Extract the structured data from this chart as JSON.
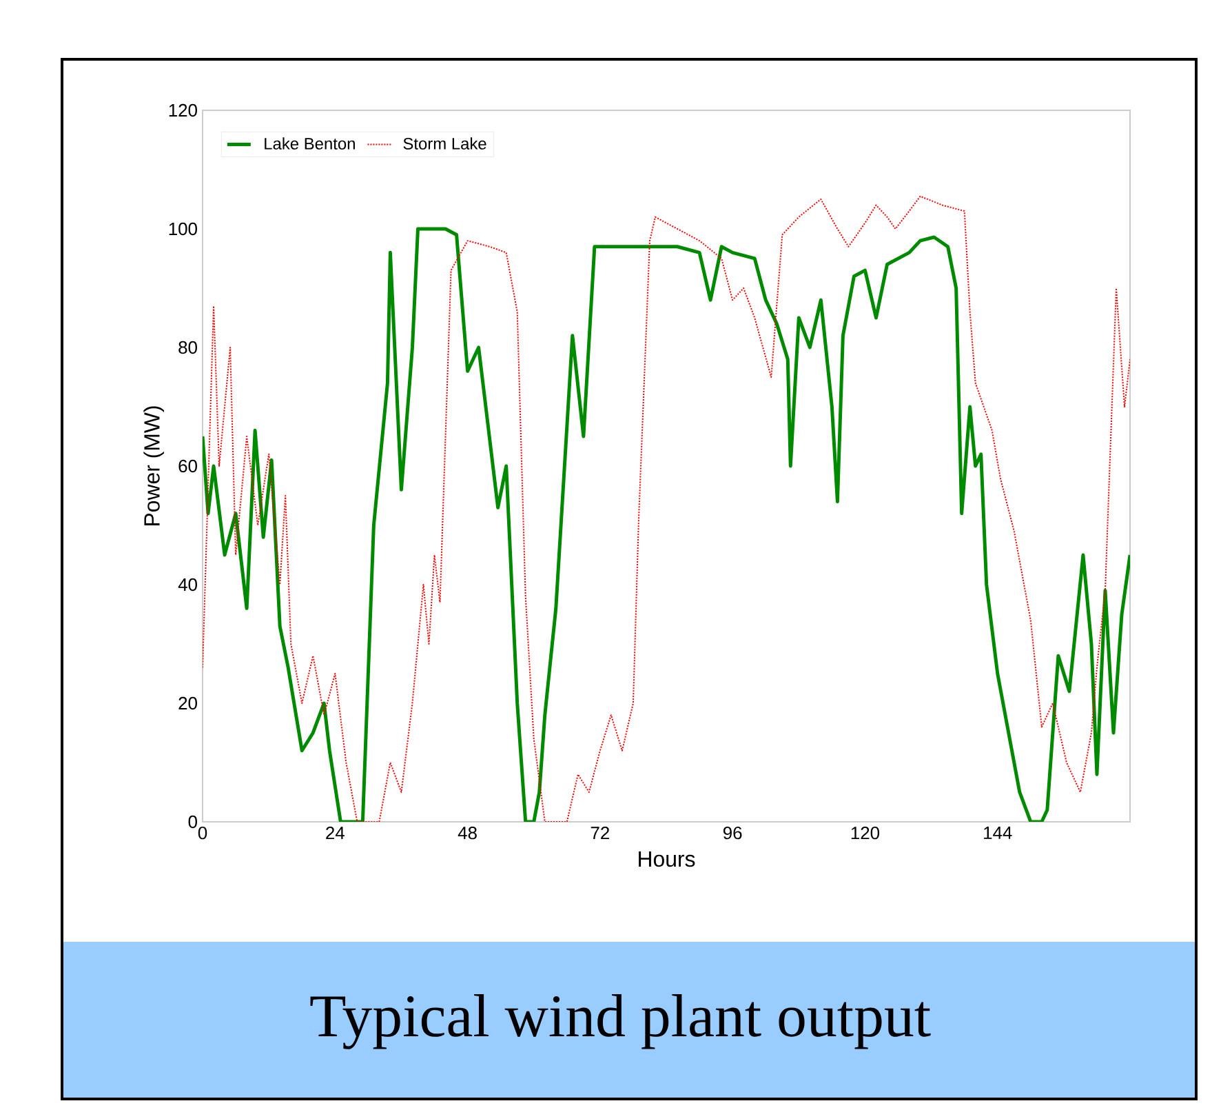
{
  "chart_data": {
    "type": "line",
    "title": "Typical wind plant output",
    "xlabel": "Hours",
    "ylabel": "Power (MW)",
    "xlim": [
      0,
      168
    ],
    "ylim": [
      0,
      120
    ],
    "xticks": [
      0,
      24,
      48,
      72,
      96,
      120,
      144
    ],
    "yticks": [
      0,
      20,
      40,
      60,
      80,
      100,
      120
    ],
    "legend": "top left",
    "series": [
      {
        "name": "Lake Benton",
        "color": "#008a00",
        "line_style": "solid",
        "x": [
          0,
          1,
          2,
          4,
          6,
          8,
          9.5,
          11,
          12.5,
          14,
          15.5,
          18,
          20,
          22,
          23,
          25,
          27,
          29,
          31,
          33.5,
          34,
          36,
          38,
          39,
          41,
          44,
          46,
          48,
          50,
          53.5,
          55,
          57,
          58.5,
          60,
          61,
          62,
          64,
          67,
          69,
          71,
          74,
          78,
          82,
          86,
          90,
          92,
          94,
          96,
          100,
          102,
          104,
          106,
          106.5,
          108,
          110,
          112,
          114,
          115,
          116,
          118,
          120,
          122,
          124,
          126,
          128,
          130,
          132.5,
          135,
          136.5,
          137.5,
          139,
          140,
          141,
          142,
          144,
          146,
          148,
          150,
          152,
          153,
          155,
          157,
          159.5,
          161,
          162,
          163.5,
          165,
          166.5,
          168
        ],
        "values": [
          65,
          52,
          60,
          45,
          52,
          36,
          66,
          48,
          61,
          33,
          26,
          12,
          15,
          20,
          12,
          0,
          0,
          0,
          50,
          74,
          96,
          56,
          80,
          100,
          100,
          100,
          99,
          76,
          80,
          53,
          60,
          20,
          0,
          0,
          5,
          18,
          36,
          82,
          65,
          97,
          97,
          97,
          97,
          97,
          96,
          88,
          97,
          96,
          95,
          88,
          84,
          78,
          60,
          85,
          80,
          88,
          70,
          54,
          82,
          92,
          93,
          85,
          94,
          95,
          96,
          98,
          98.6,
          97,
          90,
          52,
          70,
          60,
          62,
          40,
          25,
          15,
          5,
          0,
          0,
          2,
          28,
          22,
          45,
          30,
          8,
          39,
          15,
          35,
          45
        ]
      },
      {
        "name": "Storm Lake",
        "color": "#ff0000",
        "line_style": "dotted",
        "x": [
          0,
          2,
          3,
          5,
          6,
          8,
          10,
          12,
          14,
          15,
          16,
          18,
          20,
          22,
          24,
          26,
          28,
          32,
          34,
          36,
          38,
          40,
          41,
          42,
          43,
          45,
          48,
          52,
          55,
          57,
          58.5,
          60,
          62,
          66,
          68,
          70,
          72,
          74,
          76,
          78,
          79,
          81,
          82,
          86,
          90,
          94,
          96,
          98,
          100,
          103,
          105,
          108,
          112,
          115,
          117,
          120,
          122,
          124,
          125.5,
          128,
          130,
          134,
          138,
          139,
          140,
          143,
          144.5,
          147,
          150,
          152,
          154,
          156.5,
          159,
          161,
          162,
          163.5,
          165.5,
          167,
          168
        ],
        "values": [
          26,
          87,
          60,
          80,
          45,
          65,
          50,
          62,
          40,
          55,
          30,
          20,
          28,
          18,
          25,
          10,
          0,
          0,
          10,
          5,
          20,
          40,
          30,
          45,
          37,
          93,
          98,
          97,
          96,
          86,
          38,
          14,
          0,
          0,
          8,
          5,
          12,
          18,
          12,
          20,
          51,
          98,
          102,
          100,
          98,
          95,
          88,
          90,
          85,
          75,
          99,
          102,
          105,
          100,
          97,
          101,
          104,
          102,
          100,
          103,
          105.5,
          104,
          103,
          86,
          74,
          66,
          58,
          49,
          34,
          16,
          20,
          10,
          5,
          15,
          26,
          39,
          90,
          70,
          78
        ]
      }
    ]
  }
}
